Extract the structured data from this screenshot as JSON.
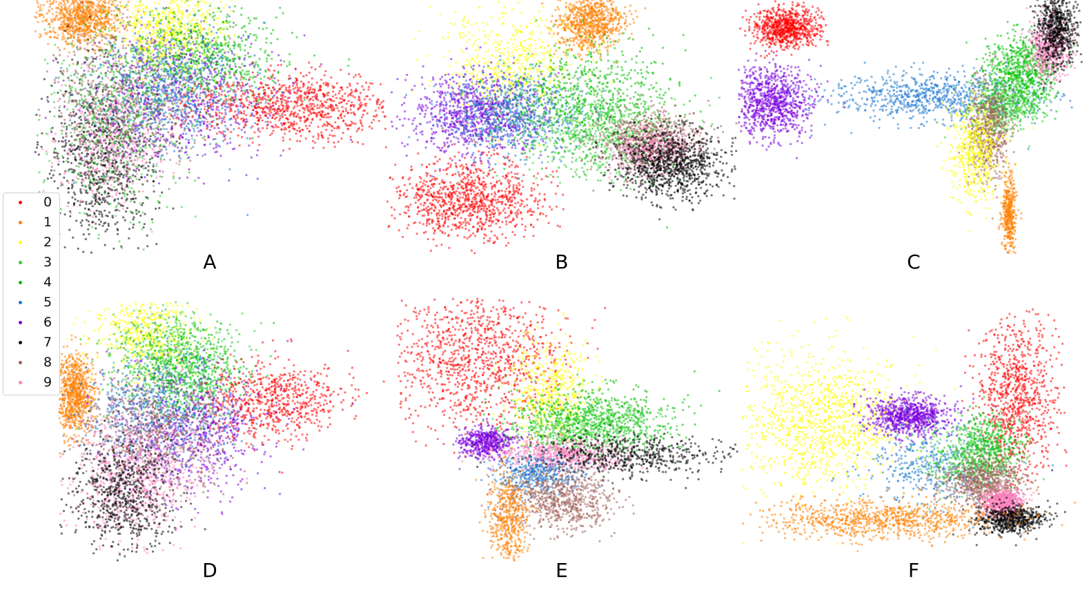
{
  "chart_data": [
    {
      "type": "scatter",
      "panel": "A",
      "clusters": [
        {
          "class": "1",
          "cx": 0.12,
          "cy": 0.05,
          "sx": 0.06,
          "sy": 0.06,
          "n": 900
        },
        {
          "class": "7",
          "cx": 0.18,
          "cy": 0.62,
          "sx": 0.08,
          "sy": 0.18,
          "n": 900
        },
        {
          "class": "9",
          "cx": 0.2,
          "cy": 0.55,
          "sx": 0.08,
          "sy": 0.14,
          "n": 500
        },
        {
          "class": "8",
          "cx": 0.28,
          "cy": 0.35,
          "sx": 0.12,
          "sy": 0.15,
          "n": 700
        },
        {
          "class": "3",
          "cx": 0.22,
          "cy": 0.45,
          "sx": 0.1,
          "sy": 0.2,
          "n": 600
        },
        {
          "class": "2",
          "cx": 0.38,
          "cy": 0.1,
          "sx": 0.08,
          "sy": 0.08,
          "n": 600
        },
        {
          "class": "4",
          "cx": 0.48,
          "cy": 0.22,
          "sx": 0.12,
          "sy": 0.1,
          "n": 700
        },
        {
          "class": "6",
          "cx": 0.42,
          "cy": 0.4,
          "sx": 0.15,
          "sy": 0.13,
          "n": 600
        },
        {
          "class": "5",
          "cx": 0.38,
          "cy": 0.35,
          "sx": 0.12,
          "sy": 0.12,
          "n": 600
        },
        {
          "class": "0",
          "cx": 0.75,
          "cy": 0.42,
          "sx": 0.14,
          "sy": 0.07,
          "n": 900
        }
      ]
    },
    {
      "type": "scatter",
      "panel": "B",
      "clusters": [
        {
          "class": "1",
          "cx": 0.58,
          "cy": 0.08,
          "sx": 0.05,
          "sy": 0.06,
          "n": 800
        },
        {
          "class": "2",
          "cx": 0.35,
          "cy": 0.25,
          "sx": 0.1,
          "sy": 0.12,
          "n": 600
        },
        {
          "class": "0",
          "cx": 0.22,
          "cy": 0.8,
          "sx": 0.11,
          "sy": 0.08,
          "n": 1000
        },
        {
          "class": "6",
          "cx": 0.25,
          "cy": 0.45,
          "sx": 0.1,
          "sy": 0.08,
          "n": 900
        },
        {
          "class": "5",
          "cx": 0.35,
          "cy": 0.45,
          "sx": 0.1,
          "sy": 0.08,
          "n": 700
        },
        {
          "class": "4",
          "cx": 0.58,
          "cy": 0.4,
          "sx": 0.12,
          "sy": 0.12,
          "n": 700
        },
        {
          "class": "3",
          "cx": 0.6,
          "cy": 0.52,
          "sx": 0.12,
          "sy": 0.1,
          "n": 600
        },
        {
          "class": "8",
          "cx": 0.75,
          "cy": 0.55,
          "sx": 0.08,
          "sy": 0.06,
          "n": 500
        },
        {
          "class": "9",
          "cx": 0.76,
          "cy": 0.6,
          "sx": 0.06,
          "sy": 0.05,
          "n": 400
        },
        {
          "class": "7",
          "cx": 0.82,
          "cy": 0.65,
          "sx": 0.08,
          "sy": 0.07,
          "n": 1000
        }
      ]
    },
    {
      "type": "scatter",
      "panel": "C",
      "clusters": [
        {
          "class": "0",
          "cx": 0.12,
          "cy": 0.1,
          "sx": 0.05,
          "sy": 0.04,
          "n": 800
        },
        {
          "class": "6",
          "cx": 0.08,
          "cy": 0.4,
          "sx": 0.06,
          "sy": 0.07,
          "n": 900
        },
        {
          "class": "5",
          "cx": 0.55,
          "cy": 0.38,
          "sx": 0.15,
          "sy": 0.05,
          "n": 800
        },
        {
          "class": "4",
          "cx": 0.82,
          "cy": 0.28,
          "sx": 0.05,
          "sy": 0.08,
          "n": 700
        },
        {
          "class": "3",
          "cx": 0.76,
          "cy": 0.42,
          "sx": 0.05,
          "sy": 0.06,
          "n": 500
        },
        {
          "class": "8",
          "cx": 0.72,
          "cy": 0.52,
          "sx": 0.03,
          "sy": 0.1,
          "n": 600
        },
        {
          "class": "2",
          "cx": 0.68,
          "cy": 0.6,
          "sx": 0.04,
          "sy": 0.1,
          "n": 500
        },
        {
          "class": "9",
          "cx": 0.9,
          "cy": 0.18,
          "sx": 0.03,
          "sy": 0.06,
          "n": 500
        },
        {
          "class": "7",
          "cx": 0.92,
          "cy": 0.1,
          "sx": 0.03,
          "sy": 0.08,
          "n": 700
        },
        {
          "class": "1",
          "cx": 0.78,
          "cy": 0.85,
          "sx": 0.01,
          "sy": 0.08,
          "n": 400
        }
      ]
    },
    {
      "type": "scatter",
      "panel": "D",
      "clusters": [
        {
          "class": "1",
          "cx": 0.03,
          "cy": 0.35,
          "sx": 0.03,
          "sy": 0.08,
          "n": 800
        },
        {
          "class": "2",
          "cx": 0.25,
          "cy": 0.1,
          "sx": 0.08,
          "sy": 0.08,
          "n": 500
        },
        {
          "class": "3",
          "cx": 0.35,
          "cy": 0.2,
          "sx": 0.09,
          "sy": 0.1,
          "n": 600
        },
        {
          "class": "4",
          "cx": 0.38,
          "cy": 0.28,
          "sx": 0.1,
          "sy": 0.1,
          "n": 500
        },
        {
          "class": "0",
          "cx": 0.65,
          "cy": 0.38,
          "sx": 0.11,
          "sy": 0.08,
          "n": 700
        },
        {
          "class": "6",
          "cx": 0.4,
          "cy": 0.5,
          "sx": 0.12,
          "sy": 0.12,
          "n": 700
        },
        {
          "class": "5",
          "cx": 0.3,
          "cy": 0.42,
          "sx": 0.12,
          "sy": 0.1,
          "n": 600
        },
        {
          "class": "8",
          "cx": 0.28,
          "cy": 0.5,
          "sx": 0.12,
          "sy": 0.12,
          "n": 700
        },
        {
          "class": "9",
          "cx": 0.22,
          "cy": 0.68,
          "sx": 0.1,
          "sy": 0.12,
          "n": 700
        },
        {
          "class": "7",
          "cx": 0.18,
          "cy": 0.75,
          "sx": 0.08,
          "sy": 0.12,
          "n": 700
        }
      ]
    },
    {
      "type": "scatter",
      "panel": "E",
      "clusters": [
        {
          "class": "0",
          "cx": 0.22,
          "cy": 0.22,
          "sx": 0.13,
          "sy": 0.15,
          "n": 1100
        },
        {
          "class": "6",
          "cx": 0.25,
          "cy": 0.55,
          "sx": 0.04,
          "sy": 0.03,
          "n": 500
        },
        {
          "class": "2",
          "cx": 0.45,
          "cy": 0.35,
          "sx": 0.06,
          "sy": 0.1,
          "n": 500
        },
        {
          "class": "4",
          "cx": 0.58,
          "cy": 0.45,
          "sx": 0.12,
          "sy": 0.06,
          "n": 600
        },
        {
          "class": "3",
          "cx": 0.55,
          "cy": 0.5,
          "sx": 0.12,
          "sy": 0.05,
          "n": 500
        },
        {
          "class": "9",
          "cx": 0.48,
          "cy": 0.6,
          "sx": 0.1,
          "sy": 0.03,
          "n": 600
        },
        {
          "class": "7",
          "cx": 0.68,
          "cy": 0.6,
          "sx": 0.15,
          "sy": 0.04,
          "n": 600
        },
        {
          "class": "5",
          "cx": 0.4,
          "cy": 0.68,
          "sx": 0.06,
          "sy": 0.04,
          "n": 400
        },
        {
          "class": "8",
          "cx": 0.48,
          "cy": 0.78,
          "sx": 0.08,
          "sy": 0.06,
          "n": 700
        },
        {
          "class": "1",
          "cx": 0.32,
          "cy": 0.85,
          "sx": 0.03,
          "sy": 0.1,
          "n": 500
        }
      ]
    },
    {
      "type": "scatter",
      "panel": "F",
      "clusters": [
        {
          "class": "2",
          "cx": 0.22,
          "cy": 0.45,
          "sx": 0.12,
          "sy": 0.14,
          "n": 1100
        },
        {
          "class": "6",
          "cx": 0.48,
          "cy": 0.42,
          "sx": 0.06,
          "sy": 0.04,
          "n": 800
        },
        {
          "class": "0",
          "cx": 0.8,
          "cy": 0.35,
          "sx": 0.06,
          "sy": 0.16,
          "n": 900
        },
        {
          "class": "5",
          "cx": 0.55,
          "cy": 0.62,
          "sx": 0.1,
          "sy": 0.08,
          "n": 400
        },
        {
          "class": "4",
          "cx": 0.72,
          "cy": 0.55,
          "sx": 0.05,
          "sy": 0.07,
          "n": 400
        },
        {
          "class": "3",
          "cx": 0.65,
          "cy": 0.6,
          "sx": 0.07,
          "sy": 0.07,
          "n": 400
        },
        {
          "class": "8",
          "cx": 0.7,
          "cy": 0.7,
          "sx": 0.06,
          "sy": 0.05,
          "n": 700
        },
        {
          "class": "9",
          "cx": 0.76,
          "cy": 0.78,
          "sx": 0.03,
          "sy": 0.03,
          "n": 600
        },
        {
          "class": "7",
          "cx": 0.78,
          "cy": 0.85,
          "sx": 0.05,
          "sy": 0.03,
          "n": 600
        },
        {
          "class": "1",
          "cx": 0.4,
          "cy": 0.85,
          "sx": 0.18,
          "sy": 0.04,
          "n": 900
        }
      ]
    }
  ],
  "legend": [
    {
      "label": "0",
      "color": "#ff0000"
    },
    {
      "label": "1",
      "color": "#ff7f00"
    },
    {
      "label": "2",
      "color": "#ffff00"
    },
    {
      "label": "3",
      "color": "#32cd32"
    },
    {
      "label": "4",
      "color": "#00c000"
    },
    {
      "label": "5",
      "color": "#1e78d2"
    },
    {
      "label": "6",
      "color": "#7a00e0"
    },
    {
      "label": "7",
      "color": "#000000"
    },
    {
      "label": "8",
      "color": "#a0605a"
    },
    {
      "label": "9",
      "color": "#ff80c0"
    }
  ],
  "panel_labels": [
    "A",
    "B",
    "C",
    "D",
    "E",
    "F"
  ]
}
